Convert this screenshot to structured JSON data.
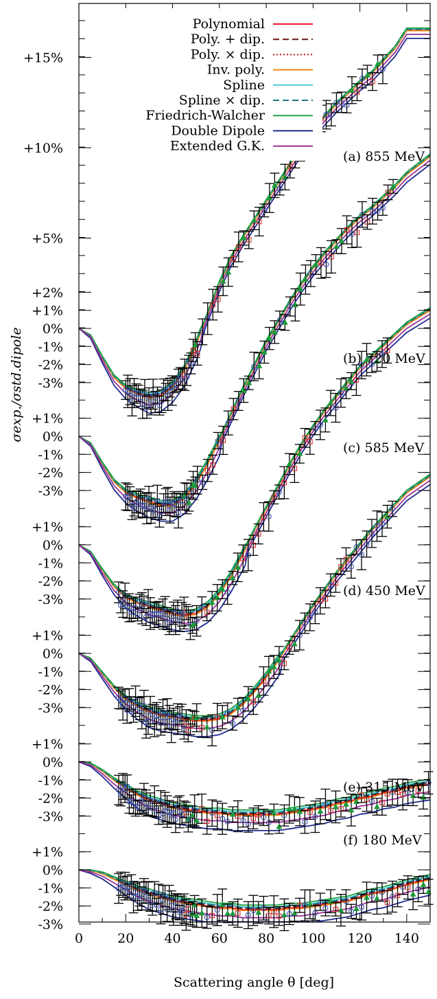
{
  "chart_data": {
    "type": "line",
    "xlabel": "Scattering angle θ [deg]",
    "ylabel": "σexp./σstd.dipole",
    "xlim": [
      0,
      150
    ],
    "x_ticks": [
      0,
      20,
      40,
      60,
      80,
      100,
      120,
      140
    ],
    "legend_position": "top-left",
    "grid": false,
    "legend": [
      {
        "name": "Polynomial",
        "color": "#e8162b",
        "dash": "solid"
      },
      {
        "name": "Poly. + dip.",
        "color": "#6b0f12",
        "dash": "dashed"
      },
      {
        "name": "Poly. × dip.",
        "color": "#b5121b",
        "dash": "dotted"
      },
      {
        "name": "Inv. poly.",
        "color": "#f08a1c",
        "dash": "solid"
      },
      {
        "name": "Spline",
        "color": "#4fc9d4",
        "dash": "solid"
      },
      {
        "name": "Spline × dip.",
        "color": "#137a80",
        "dash": "dashed"
      },
      {
        "name": "Friedrich-Walcher",
        "color": "#22a246",
        "dash": "solid"
      },
      {
        "name": "Double Dipole",
        "color": "#1f2a8c",
        "dash": "solid"
      },
      {
        "name": "Extended G.K.",
        "color": "#9b2f99",
        "dash": "solid"
      }
    ],
    "panels": [
      {
        "label": "(a) 855 MeV",
        "zero_px": 478,
        "tick_labels": [
          {
            "v": 15,
            "t": "+15%"
          },
          {
            "v": 10,
            "t": "+10%"
          },
          {
            "v": 5,
            "t": "+5%"
          },
          {
            "v": 2,
            "t": "+2%"
          },
          {
            "v": 1,
            "t": "+1%"
          },
          {
            "v": 0,
            "t": "0%"
          },
          {
            "v": -1,
            "t": "-1%"
          },
          {
            "v": -2,
            "t": "-2%"
          },
          {
            "v": -3,
            "t": "-3%"
          }
        ],
        "curve": {
          "x": [
            0,
            5,
            10,
            15,
            20,
            25,
            30,
            35,
            40,
            45,
            50,
            55,
            60,
            65,
            70,
            75,
            80,
            85,
            90,
            95,
            100,
            105,
            110,
            115,
            120,
            125,
            130,
            135,
            140
          ],
          "y": [
            0,
            -0.4,
            -1.6,
            -2.7,
            -3.3,
            -3.6,
            -3.8,
            -3.7,
            -3.2,
            -2.3,
            -0.9,
            0.8,
            2.5,
            3.9,
            5.0,
            6.0,
            7.0,
            8.0,
            9.0,
            10.0,
            10.9,
            11.7,
            12.4,
            13.0,
            13.6,
            14.1,
            14.8,
            15.5,
            16.5
          ]
        }
      },
      {
        "label": "(b) 720 MeV",
        "zero_px": 635,
        "tick_labels": [
          {
            "v": 1,
            "t": "+1%"
          },
          {
            "v": 0,
            "t": "0%"
          },
          {
            "v": -1,
            "t": "-1%"
          },
          {
            "v": -2,
            "t": "-2%"
          },
          {
            "v": -3,
            "t": "-3%"
          }
        ],
        "curve": {
          "x": [
            0,
            5,
            10,
            15,
            20,
            25,
            30,
            35,
            40,
            45,
            50,
            55,
            60,
            65,
            70,
            75,
            80,
            85,
            90,
            95,
            100,
            105,
            110,
            115,
            120,
            125,
            130,
            135,
            140,
            150
          ],
          "y": [
            0,
            -0.4,
            -1.5,
            -2.5,
            -3.1,
            -3.4,
            -3.6,
            -3.8,
            -3.8,
            -3.4,
            -2.6,
            -1.5,
            -0.2,
            1.2,
            2.6,
            3.9,
            5.2,
            6.3,
            7.4,
            8.4,
            9.3,
            10.1,
            10.8,
            11.5,
            12.1,
            12.6,
            13.2,
            13.8,
            14.5,
            15.5
          ]
        }
      },
      {
        "label": "(c) 585 MeV",
        "zero_px": 793,
        "tick_labels": [
          {
            "v": 1,
            "t": "+1%"
          },
          {
            "v": 0,
            "t": "0%"
          },
          {
            "v": -1,
            "t": "-1%"
          },
          {
            "v": -2,
            "t": "-2%"
          },
          {
            "v": -3,
            "t": "-3%"
          }
        ],
        "curve": {
          "x": [
            0,
            5,
            10,
            15,
            20,
            25,
            30,
            35,
            40,
            45,
            50,
            55,
            60,
            65,
            70,
            75,
            80,
            85,
            90,
            95,
            100,
            105,
            110,
            115,
            120,
            125,
            130,
            135,
            140,
            150
          ],
          "y": [
            0,
            -0.4,
            -1.4,
            -2.3,
            -2.9,
            -3.2,
            -3.4,
            -3.6,
            -3.8,
            -3.9,
            -3.8,
            -3.4,
            -2.7,
            -1.7,
            -0.5,
            0.8,
            2.0,
            3.2,
            4.4,
            5.5,
            6.5,
            7.4,
            8.2,
            9.0,
            9.8,
            10.4,
            11.0,
            11.6,
            12.2,
            13.0
          ]
        }
      },
      {
        "label": "(d) 450 MeV",
        "zero_px": 951,
        "tick_labels": [
          {
            "v": 1,
            "t": "+1%"
          },
          {
            "v": 0,
            "t": "0%"
          },
          {
            "v": -1,
            "t": "-1%"
          },
          {
            "v": -2,
            "t": "-2%"
          },
          {
            "v": -3,
            "t": "-3%"
          }
        ],
        "curve": {
          "x": [
            0,
            5,
            10,
            15,
            20,
            25,
            30,
            35,
            40,
            45,
            50,
            55,
            60,
            65,
            70,
            75,
            80,
            85,
            90,
            95,
            100,
            105,
            110,
            115,
            120,
            125,
            130,
            135,
            140,
            150
          ],
          "y": [
            0,
            -0.3,
            -1.1,
            -1.9,
            -2.5,
            -2.9,
            -3.2,
            -3.4,
            -3.5,
            -3.6,
            -3.7,
            -3.7,
            -3.6,
            -3.3,
            -2.8,
            -2.1,
            -1.3,
            -0.4,
            0.6,
            1.6,
            2.6,
            3.5,
            4.4,
            5.2,
            6.0,
            6.8,
            7.5,
            8.2,
            8.9,
            9.8
          ]
        }
      },
      {
        "label": "(e) 315 MeV",
        "zero_px": 1109,
        "tick_labels": [
          {
            "v": 1,
            "t": "+1%"
          },
          {
            "v": 0,
            "t": "0%"
          },
          {
            "v": -1,
            "t": "-1%"
          },
          {
            "v": -2,
            "t": "-2%"
          },
          {
            "v": -3,
            "t": "-3%"
          }
        ],
        "curve": {
          "x": [
            0,
            5,
            10,
            15,
            20,
            25,
            30,
            35,
            40,
            45,
            50,
            55,
            60,
            65,
            70,
            75,
            80,
            85,
            90,
            95,
            100,
            105,
            110,
            115,
            120,
            125,
            130,
            135,
            140,
            150
          ],
          "y": [
            0,
            -0.1,
            -0.5,
            -1.0,
            -1.4,
            -1.8,
            -2.1,
            -2.3,
            -2.5,
            -2.6,
            -2.7,
            -2.8,
            -2.8,
            -2.9,
            -2.9,
            -2.9,
            -2.9,
            -2.9,
            -2.8,
            -2.7,
            -2.6,
            -2.5,
            -2.3,
            -2.2,
            -2.0,
            -1.9,
            -1.7,
            -1.6,
            -1.4,
            -1.2
          ]
        }
      },
      {
        "label": "(f) 180 MeV",
        "zero_px": 1266,
        "tick_labels": [
          {
            "v": 1,
            "t": "+1%"
          },
          {
            "v": 0,
            "t": "0%"
          },
          {
            "v": -1,
            "t": "-1%"
          },
          {
            "v": -2,
            "t": "-2%"
          },
          {
            "v": -3,
            "t": "-3%"
          }
        ],
        "curve": {
          "x": [
            0,
            5,
            10,
            15,
            20,
            25,
            30,
            35,
            40,
            45,
            50,
            55,
            60,
            65,
            70,
            75,
            80,
            85,
            90,
            95,
            100,
            105,
            110,
            115,
            120,
            125,
            130,
            135,
            140,
            150
          ],
          "y": [
            0,
            -0.05,
            -0.2,
            -0.5,
            -0.8,
            -1.1,
            -1.3,
            -1.5,
            -1.7,
            -1.8,
            -1.9,
            -2.0,
            -2.1,
            -2.1,
            -2.2,
            -2.2,
            -2.2,
            -2.2,
            -2.1,
            -2.1,
            -2.0,
            -1.9,
            -1.8,
            -1.7,
            -1.5,
            -1.3,
            -1.2,
            -1.0,
            -0.8,
            -0.5
          ]
        }
      }
    ]
  }
}
